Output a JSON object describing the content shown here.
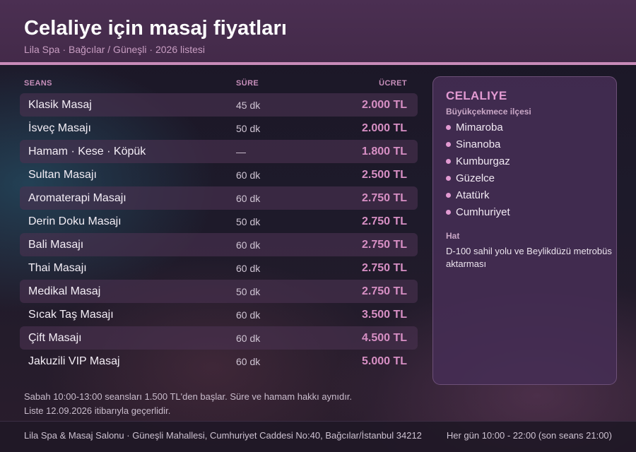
{
  "header": {
    "title": "Celaliye için masaj fiyatları",
    "subtitle": "Lila Spa · Bağcılar / Güneşli · 2026 listesi"
  },
  "table": {
    "headers": {
      "session": "SEANS",
      "duration": "SÜRE",
      "price": "ÜCRET"
    },
    "rows": [
      {
        "name": "Klasik Masaj",
        "duration": "45 dk",
        "price": "2.000 TL"
      },
      {
        "name": "İsveç Masajı",
        "duration": "50 dk",
        "price": "2.000 TL"
      },
      {
        "name": "Hamam · Kese · Köpük",
        "duration": "—",
        "price": "1.800 TL"
      },
      {
        "name": "Sultan Masajı",
        "duration": "60 dk",
        "price": "2.500 TL"
      },
      {
        "name": "Aromaterapi Masajı",
        "duration": "60 dk",
        "price": "2.750 TL"
      },
      {
        "name": "Derin Doku Masajı",
        "duration": "50 dk",
        "price": "2.750 TL"
      },
      {
        "name": "Bali Masajı",
        "duration": "60 dk",
        "price": "2.750 TL"
      },
      {
        "name": "Thai Masajı",
        "duration": "60 dk",
        "price": "2.750 TL"
      },
      {
        "name": "Medikal Masaj",
        "duration": "50 dk",
        "price": "2.750 TL"
      },
      {
        "name": "Sıcak Taş Masajı",
        "duration": "60 dk",
        "price": "3.500 TL"
      },
      {
        "name": "Çift Masajı",
        "duration": "60 dk",
        "price": "4.500 TL"
      },
      {
        "name": "Jakuzili VIP Masaj",
        "duration": "60 dk",
        "price": "5.000 TL"
      }
    ]
  },
  "notes": {
    "line1": "Sabah 10:00-13:00 seansları 1.500 TL'den başlar. Süre ve hamam hakkı aynıdır.",
    "line2": "Liste 12.09.2026 itibarıyla geçerlidir."
  },
  "card": {
    "title": "CELALIYE",
    "district": "Büyükçekmece ilçesi",
    "neighborhoods": [
      "Mimaroba",
      "Sinanoba",
      "Kumburgaz",
      "Güzelce",
      "Atatürk",
      "Cumhuriyet"
    ],
    "line_label": "Hat",
    "line_text": "D-100 sahil yolu ve Beylikdüzü metrobüs aktarması"
  },
  "footer": {
    "address": "Lila Spa & Masaj Salonu · Güneşli Mahallesi, Cumhuriyet Caddesi No:40, Bağcılar/İstanbul 34212",
    "hours": "Her gün 10:00 - 22:00 (son seans 21:00)"
  },
  "colors": {
    "accent": "#d78fc4",
    "header_bg": "#4b2f52",
    "card_title": "#e29ad2"
  }
}
